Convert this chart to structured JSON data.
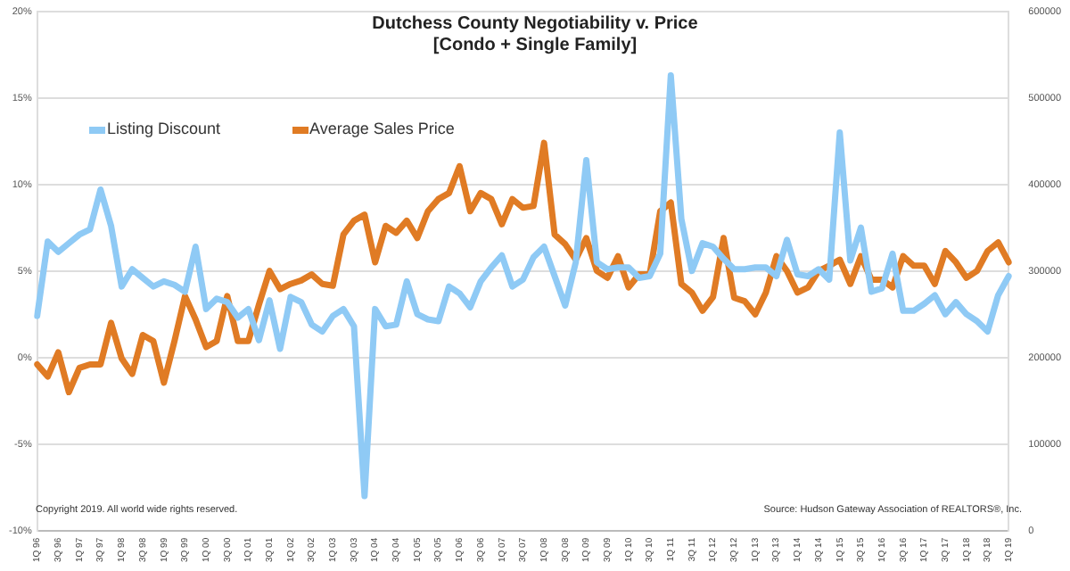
{
  "chart_data": {
    "type": "line",
    "title": "Dutchess County Negotiability v. Price\n[Condo + Single Family]",
    "categories": [
      "1Q 96",
      null,
      "3Q 96",
      null,
      "1Q 97",
      null,
      "3Q 97",
      null,
      "1Q 98",
      null,
      "3Q 98",
      null,
      "1Q 99",
      null,
      "3Q 99",
      null,
      "1Q 00",
      null,
      "3Q 00",
      null,
      "1Q 01",
      null,
      "3Q 01",
      null,
      "1Q 02",
      null,
      "3Q 02",
      null,
      "1Q 03",
      null,
      "3Q 03",
      null,
      "1Q 04",
      null,
      "3Q 04",
      null,
      "1Q 05",
      null,
      "3Q 05",
      null,
      "1Q 06",
      null,
      "3Q 06",
      null,
      "1Q 07",
      null,
      "3Q 07",
      null,
      "1Q 08",
      null,
      "3Q 08",
      null,
      "1Q 09",
      null,
      "3Q 09",
      null,
      "1Q 10",
      null,
      "3Q 10",
      null,
      "1Q 11",
      null,
      "3Q 11",
      null,
      "1Q 12",
      null,
      "3Q 12",
      null,
      "1Q 13",
      null,
      "3Q 13",
      null,
      "1Q 14",
      null,
      "3Q 14",
      null,
      "1Q 15",
      null,
      "3Q 15",
      null,
      "1Q 16",
      null,
      "3Q 16",
      null,
      "1Q 17",
      null,
      "3Q 17",
      null,
      "1Q 18",
      null,
      "3Q 18",
      null,
      "1Q 19"
    ],
    "series": [
      {
        "name": "Listing Discount",
        "color": "#8fcaf5",
        "values": [
          2.4,
          6.7,
          6.1,
          6.6,
          7.1,
          7.4,
          9.7,
          7.6,
          4.1,
          5.1,
          4.6,
          4.1,
          4.4,
          4.2,
          3.8,
          6.4,
          2.8,
          3.4,
          3.2,
          2.3,
          2.8,
          1.0,
          3.3,
          0.5,
          3.5,
          3.2,
          1.9,
          1.5,
          2.4,
          2.8,
          1.8,
          -8.0,
          2.8,
          1.8,
          1.9,
          4.4,
          2.5,
          2.2,
          2.1,
          4.1,
          3.7,
          2.9,
          4.4,
          5.2,
          5.9,
          4.1,
          4.5,
          5.8,
          6.4,
          4.7,
          3.0,
          5.5,
          11.4,
          5.5,
          5.1,
          5.2,
          5.2,
          4.6,
          4.7,
          6.0,
          16.3,
          8.0,
          5.0,
          6.6,
          6.4,
          5.7,
          5.1,
          5.1,
          5.2,
          5.2,
          4.7,
          6.8,
          4.8,
          4.7,
          5.1,
          4.5,
          13.0,
          5.6,
          7.5,
          3.8,
          4.0,
          6.0,
          2.7,
          2.7,
          3.1,
          3.6,
          2.5,
          3.2,
          2.5,
          2.1,
          1.5,
          3.6,
          4.7
        ]
      },
      {
        "name": "Average Sales Price",
        "color": "#e07b24",
        "axis": "y2",
        "values": [
          192000,
          178000,
          206000,
          160000,
          188000,
          192000,
          192000,
          240000,
          199000,
          181000,
          226000,
          219000,
          171000,
          219000,
          271000,
          244000,
          212000,
          219000,
          271000,
          219000,
          219000,
          261000,
          300000,
          279000,
          285000,
          289000,
          296000,
          285000,
          283000,
          342000,
          358000,
          365000,
          310000,
          352000,
          344000,
          358000,
          338000,
          369000,
          383000,
          390000,
          421000,
          369000,
          390000,
          383000,
          354000,
          383000,
          373000,
          375000,
          448000,
          342000,
          331000,
          313000,
          338000,
          300000,
          292000,
          317000,
          281000,
          296000,
          296000,
          369000,
          379000,
          285000,
          275000,
          254000,
          270000,
          338000,
          269000,
          265000,
          250000,
          275000,
          317000,
          300000,
          275000,
          281000,
          300000,
          306000,
          313000,
          285000,
          317000,
          290000,
          290000,
          281000,
          317000,
          306000,
          306000,
          285000,
          323000,
          310000,
          292000,
          300000,
          323000,
          333000,
          310000
        ]
      }
    ],
    "ylim": [
      -10,
      20
    ],
    "yticks": [
      {
        "value": -10,
        "label": "-10%"
      },
      {
        "value": -5,
        "label": "-5%"
      },
      {
        "value": 0,
        "label": "0%"
      },
      {
        "value": 5,
        "label": "5%"
      },
      {
        "value": 10,
        "label": "10%"
      },
      {
        "value": 15,
        "label": "15%"
      },
      {
        "value": 20,
        "label": "20%"
      }
    ],
    "y2lim": [
      0,
      600000
    ],
    "y2ticks": [
      0,
      100000,
      200000,
      300000,
      400000,
      500000,
      600000
    ],
    "grid": "y",
    "legend": "top left",
    "marker": "none",
    "line_style": "solid",
    "annotations": [
      "Copyright 2019. All world wide rights reserved.",
      "Source: Hudson Gateway Association of REALTORS®, Inc."
    ]
  }
}
